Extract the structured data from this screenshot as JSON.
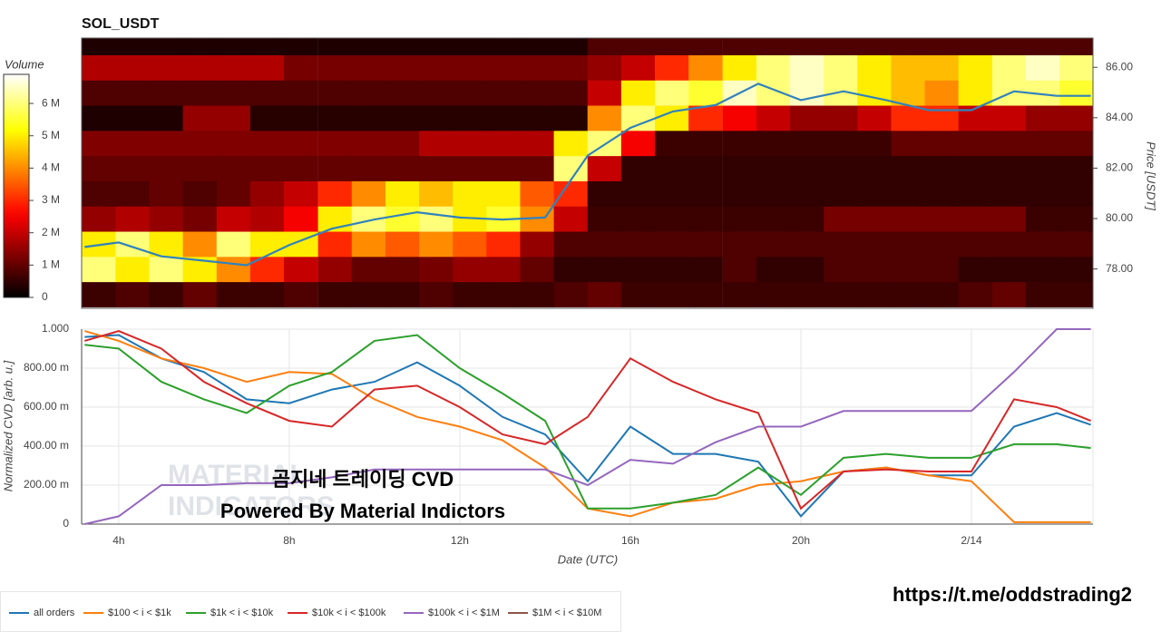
{
  "chart_data": [
    {
      "type": "heatmap",
      "title": "SOL_USDT",
      "ylabel": "Price [USDT]",
      "xlim": [
        3.13,
        26.85
      ],
      "ylim": [
        76.44,
        87.16
      ],
      "yticks": [
        {
          "value": 78,
          "label": "78.00"
        },
        {
          "value": 80,
          "label": "80.00"
        },
        {
          "value": 82,
          "label": "82.00"
        },
        {
          "value": 84,
          "label": "84.00"
        },
        {
          "value": 86,
          "label": "86.00"
        }
      ],
      "x": [
        3.53,
        4.32,
        5.11,
        5.9,
        6.69,
        7.48,
        8.27,
        9.07,
        9.86,
        10.65,
        11.44,
        12.23,
        13.02,
        13.81,
        14.6,
        15.39,
        16.18,
        16.97,
        17.76,
        18.56,
        19.35,
        20.14,
        20.93,
        21.72,
        22.51,
        23.3,
        24.09,
        24.88,
        25.67,
        26.46
      ],
      "y": [
        77,
        78,
        79,
        80,
        81,
        82,
        83,
        84,
        85,
        86,
        87
      ],
      "z": [
        [
          600000.0,
          800000.0,
          600000.0,
          1000000.0,
          600000.0,
          600000.0,
          800000.0,
          600000.0,
          600000.0,
          600000.0,
          800000.0,
          600000.0,
          600000.0,
          600000.0,
          800000.0,
          1000000.0,
          600000.0,
          600000.0,
          600000.0,
          600000.0,
          600000.0,
          600000.0,
          600000.0,
          600000.0,
          600000.0,
          600000.0,
          800000.0,
          1000000.0,
          600000.0,
          600000.0
        ],
        [
          6000000.0,
          5000000.0,
          6000000.0,
          5000000.0,
          4000000.0,
          3000000.0,
          2000000.0,
          1500000.0,
          1000000.0,
          1000000.0,
          1200000.0,
          1500000.0,
          1500000.0,
          1000000.0,
          500000.0,
          500000.0,
          500000.0,
          500000.0,
          500000.0,
          800000.0,
          500000.0,
          500000.0,
          800000.0,
          800000.0,
          800000.0,
          800000.0,
          500000.0,
          500000.0,
          500000.0,
          500000.0
        ],
        [
          5000000.0,
          6000000.0,
          5000000.0,
          4000000.0,
          6000000.0,
          5000000.0,
          5000000.0,
          3000000.0,
          4000000.0,
          3500000.0,
          4000000.0,
          3500000.0,
          3000000.0,
          1500000.0,
          800000.0,
          800000.0,
          800000.0,
          800000.0,
          800000.0,
          800000.0,
          800000.0,
          800000.0,
          800000.0,
          800000.0,
          800000.0,
          800000.0,
          800000.0,
          800000.0,
          800000.0,
          800000.0
        ],
        [
          1500000.0,
          1800000.0,
          1500000.0,
          1200000.0,
          2000000.0,
          1800000.0,
          2500000.0,
          5000000.0,
          6000000.0,
          5500000.0,
          6000000.0,
          5000000.0,
          5500000.0,
          4000000.0,
          2000000.0,
          600000.0,
          600000.0,
          600000.0,
          600000.0,
          600000.0,
          600000.0,
          600000.0,
          1200000.0,
          1200000.0,
          1200000.0,
          1200000.0,
          1200000.0,
          1200000.0,
          600000.0,
          600000.0
        ],
        [
          800000.0,
          800000.0,
          1000000.0,
          800000.0,
          1000000.0,
          1500000.0,
          2000000.0,
          3000000.0,
          4000000.0,
          5000000.0,
          4500000.0,
          5000000.0,
          5000000.0,
          3500000.0,
          3000000.0,
          500000.0,
          500000.0,
          500000.0,
          500000.0,
          500000.0,
          500000.0,
          500000.0,
          500000.0,
          500000.0,
          500000.0,
          500000.0,
          500000.0,
          500000.0,
          500000.0,
          500000.0
        ],
        [
          1000000.0,
          1000000.0,
          1000000.0,
          1000000.0,
          1000000.0,
          1000000.0,
          1000000.0,
          1000000.0,
          1000000.0,
          1000000.0,
          1000000.0,
          1000000.0,
          1000000.0,
          1000000.0,
          6000000.0,
          2000000.0,
          500000.0,
          500000.0,
          500000.0,
          500000.0,
          500000.0,
          500000.0,
          500000.0,
          500000.0,
          500000.0,
          500000.0,
          500000.0,
          500000.0,
          500000.0,
          500000.0
        ],
        [
          1300000.0,
          1300000.0,
          1300000.0,
          1300000.0,
          1300000.0,
          1300000.0,
          1300000.0,
          1300000.0,
          1300000.0,
          1300000.0,
          1800000.0,
          1800000.0,
          1800000.0,
          1800000.0,
          5000000.0,
          6000000.0,
          2500000.0,
          600000.0,
          600000.0,
          600000.0,
          600000.0,
          600000.0,
          600000.0,
          600000.0,
          1000000.0,
          1000000.0,
          1000000.0,
          1000000.0,
          1000000.0,
          1000000.0
        ],
        [
          300000.0,
          300000.0,
          300000.0,
          1500000.0,
          1500000.0,
          400000.0,
          400000.0,
          400000.0,
          400000.0,
          400000.0,
          400000.0,
          400000.0,
          400000.0,
          400000.0,
          400000.0,
          4000000.0,
          6000000.0,
          5000000.0,
          3000000.0,
          2500000.0,
          2000000.0,
          1500000.0,
          1500000.0,
          2000000.0,
          3000000.0,
          3000000.0,
          2000000.0,
          2000000.0,
          1500000.0,
          1500000.0
        ],
        [
          800000.0,
          800000.0,
          800000.0,
          800000.0,
          800000.0,
          800000.0,
          800000.0,
          800000.0,
          800000.0,
          800000.0,
          800000.0,
          800000.0,
          800000.0,
          800000.0,
          800000.0,
          2000000.0,
          5000000.0,
          6000000.0,
          5500000.0,
          6500000.0,
          6000000.0,
          6500000.0,
          6000000.0,
          5000000.0,
          4500000.0,
          4000000.0,
          5000000.0,
          6000000.0,
          6000000.0,
          5500000.0
        ],
        [
          1800000.0,
          1800000.0,
          1800000.0,
          1800000.0,
          1800000.0,
          1800000.0,
          1200000.0,
          1200000.0,
          1200000.0,
          1200000.0,
          1200000.0,
          1200000.0,
          1200000.0,
          1200000.0,
          1200000.0,
          1500000.0,
          2000000.0,
          3000000.0,
          4000000.0,
          5000000.0,
          6000000.0,
          6500000.0,
          6000000.0,
          5000000.0,
          4500000.0,
          4500000.0,
          5000000.0,
          6000000.0,
          6500000.0,
          6000000.0
        ],
        [
          300000.0,
          300000.0,
          300000.0,
          300000.0,
          300000.0,
          300000.0,
          300000.0,
          300000.0,
          300000.0,
          300000.0,
          300000.0,
          300000.0,
          300000.0,
          300000.0,
          300000.0,
          800000.0,
          800000.0,
          800000.0,
          800000.0,
          800000.0,
          800000.0,
          800000.0,
          800000.0,
          800000.0,
          800000.0,
          800000.0,
          800000.0,
          800000.0,
          800000.0,
          800000.0
        ]
      ],
      "colorbar": {
        "title": "Volume",
        "lim": [
          0,
          6900000.0
        ],
        "ticks": [
          0,
          {
            "value": 1000000.0,
            "label": "1 M"
          },
          {
            "value": 2000000.0,
            "label": "2 M"
          },
          {
            "value": 3000000.0,
            "label": "3 M"
          },
          {
            "value": 4000000.0,
            "label": "4 M"
          },
          {
            "value": 5000000.0,
            "label": "5 M"
          },
          {
            "value": 6000000.0,
            "label": "6 M"
          }
        ]
      },
      "series": [
        {
          "color": "#3182bd",
          "x": [
            3.2,
            4,
            5,
            6,
            7,
            8,
            9,
            10,
            11,
            12,
            13,
            14,
            15,
            16,
            17,
            18,
            19,
            20,
            21,
            22,
            23,
            24,
            25,
            26,
            26.8
          ],
          "values": [
            78.87,
            79.05,
            78.5,
            78.33,
            78.15,
            78.95,
            79.6,
            79.96,
            80.25,
            80.04,
            79.96,
            80.04,
            82.5,
            83.6,
            84.25,
            84.5,
            85.35,
            84.7,
            85.05,
            84.7,
            84.3,
            84.3,
            85.05,
            84.87,
            84.87
          ]
        }
      ]
    },
    {
      "type": "line",
      "xlabel": "Date (UTC)",
      "ylabel": "Normalized CVD [arb. u.]",
      "xlim": [
        3.13,
        26.85
      ],
      "ylim": [
        0,
        1
      ],
      "xticks": [
        {
          "value": 4,
          "label": "4h"
        },
        {
          "value": 8,
          "label": "8h"
        },
        {
          "value": 12,
          "label": "12h"
        },
        {
          "value": 16,
          "label": "16h"
        },
        {
          "value": 20,
          "label": "20h"
        },
        {
          "value": 24,
          "label": "2/14"
        }
      ],
      "yticks": [
        0,
        {
          "value": 0.2,
          "label": "200.00 m"
        },
        {
          "value": 0.4,
          "label": "400.00 m"
        },
        {
          "value": 0.6,
          "label": "600.00 m"
        },
        {
          "value": 0.8,
          "label": "800.00 m"
        },
        {
          "value": 1,
          "label": "1.000"
        }
      ],
      "grid": true,
      "x": [
        3.2,
        4,
        5,
        6,
        7,
        8,
        9,
        10,
        11,
        12,
        13,
        14,
        15,
        16,
        17,
        18,
        19,
        20,
        21,
        22,
        23,
        24,
        25,
        26,
        26.8
      ],
      "series": [
        {
          "name": "all orders",
          "color": "#1f77b4",
          "values": [
            0.96,
            0.97,
            0.85,
            0.78,
            0.64,
            0.62,
            0.69,
            0.73,
            0.83,
            0.71,
            0.55,
            0.46,
            0.22,
            0.5,
            0.36,
            0.36,
            0.32,
            0.04,
            0.27,
            0.29,
            0.25,
            0.25,
            0.5,
            0.57,
            0.51
          ]
        },
        {
          "name": "$100 < i < $1k",
          "color": "#ff7f0e",
          "values": [
            0.99,
            0.94,
            0.85,
            0.8,
            0.73,
            0.78,
            0.77,
            0.64,
            0.55,
            0.5,
            0.43,
            0.29,
            0.08,
            0.04,
            0.11,
            0.13,
            0.2,
            0.22,
            0.27,
            0.29,
            0.25,
            0.22,
            0.01,
            0.01,
            0.01
          ]
        },
        {
          "name": "$1k < i < $10k",
          "color": "#2ca02c",
          "values": [
            0.92,
            0.9,
            0.73,
            0.64,
            0.57,
            0.71,
            0.78,
            0.94,
            0.97,
            0.8,
            0.67,
            0.53,
            0.08,
            0.08,
            0.11,
            0.15,
            0.29,
            0.15,
            0.34,
            0.36,
            0.34,
            0.34,
            0.41,
            0.41,
            0.39
          ]
        },
        {
          "name": "$10k < i < $100k",
          "color": "#d62728",
          "values": [
            0.94,
            0.99,
            0.9,
            0.73,
            0.62,
            0.53,
            0.5,
            0.69,
            0.71,
            0.6,
            0.46,
            0.41,
            0.55,
            0.85,
            0.73,
            0.64,
            0.57,
            0.08,
            0.27,
            0.28,
            0.27,
            0.27,
            0.64,
            0.6,
            0.53
          ]
        },
        {
          "name": "$100k < i < $1M",
          "color": "#9467bd",
          "values": [
            0.0,
            0.04,
            0.2,
            0.2,
            0.21,
            0.21,
            0.24,
            0.28,
            0.28,
            0.28,
            0.28,
            0.28,
            0.2,
            0.33,
            0.31,
            0.42,
            0.5,
            0.5,
            0.58,
            0.58,
            0.58,
            0.58,
            0.78,
            1.0,
            1.0
          ]
        },
        {
          "name": "$1M < i < $10M",
          "color": "#8c564b",
          "values": [
            null,
            null,
            null,
            null,
            null,
            null,
            null,
            null,
            null,
            null,
            null,
            null,
            null,
            null,
            null,
            null,
            null,
            null,
            null,
            null,
            null,
            null,
            null,
            null,
            null
          ]
        }
      ],
      "annotations": [
        "곰지네 트레이딩 CVD",
        "Powered By Material Indictors"
      ],
      "watermark": [
        "MATERIAL",
        "INDICATORS"
      ]
    }
  ],
  "link": "https://t.me/oddstrading2"
}
